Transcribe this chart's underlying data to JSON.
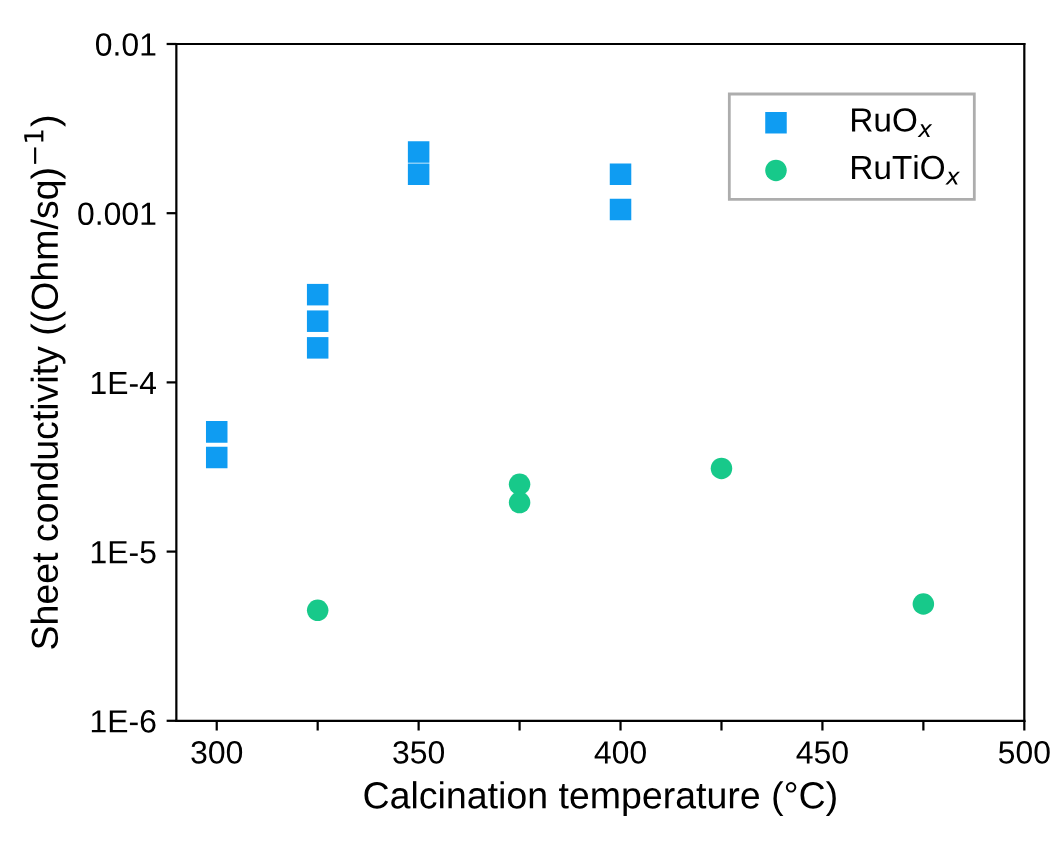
{
  "chart_data": {
    "type": "scatter",
    "xlabel": "Calcination temperature (°C)",
    "ylabel": "Sheet conductivity ((Ohm/sq)$^{−1}$)",
    "series": [
      {
        "name": "RuO$_{x}$",
        "color": "#0f9cf2",
        "marker": "square",
        "x": [
          300,
          300,
          325,
          325,
          325,
          350,
          350,
          400,
          400
        ],
        "values": [
          5.1e-05,
          3.6e-05,
          0.00033,
          0.00023,
          0.00016,
          0.0023,
          0.0017,
          0.0017,
          0.00105
        ]
      },
      {
        "name": "RuTiO$_{x}$",
        "color": "#17c98a",
        "marker": "circle",
        "x": [
          325,
          375,
          375,
          425,
          475
        ],
        "values": [
          4.5e-06,
          2.5e-05,
          1.95e-05,
          3.1e-05,
          4.9e-06
        ]
      }
    ],
    "log": "y",
    "xlim": [
      290,
      500
    ],
    "ylim": [
      1e-06,
      0.01
    ],
    "xticks": [
      300,
      {
        "value": 325,
        "label": null
      },
      350,
      {
        "value": 375,
        "label": null
      },
      400,
      {
        "value": 425,
        "label": null
      },
      450,
      {
        "value": 475,
        "label": null
      },
      500
    ],
    "yticks": [
      {
        "value": 1e-06,
        "label": "1E-6"
      },
      {
        "value": 1e-05,
        "label": "1E-5"
      },
      {
        "value": 0.0001,
        "label": "1E-4"
      },
      {
        "value": 0.001,
        "label": "0.001"
      },
      {
        "value": 0.01,
        "label": "0.01"
      }
    ],
    "grid": false,
    "legend": "top right"
  }
}
